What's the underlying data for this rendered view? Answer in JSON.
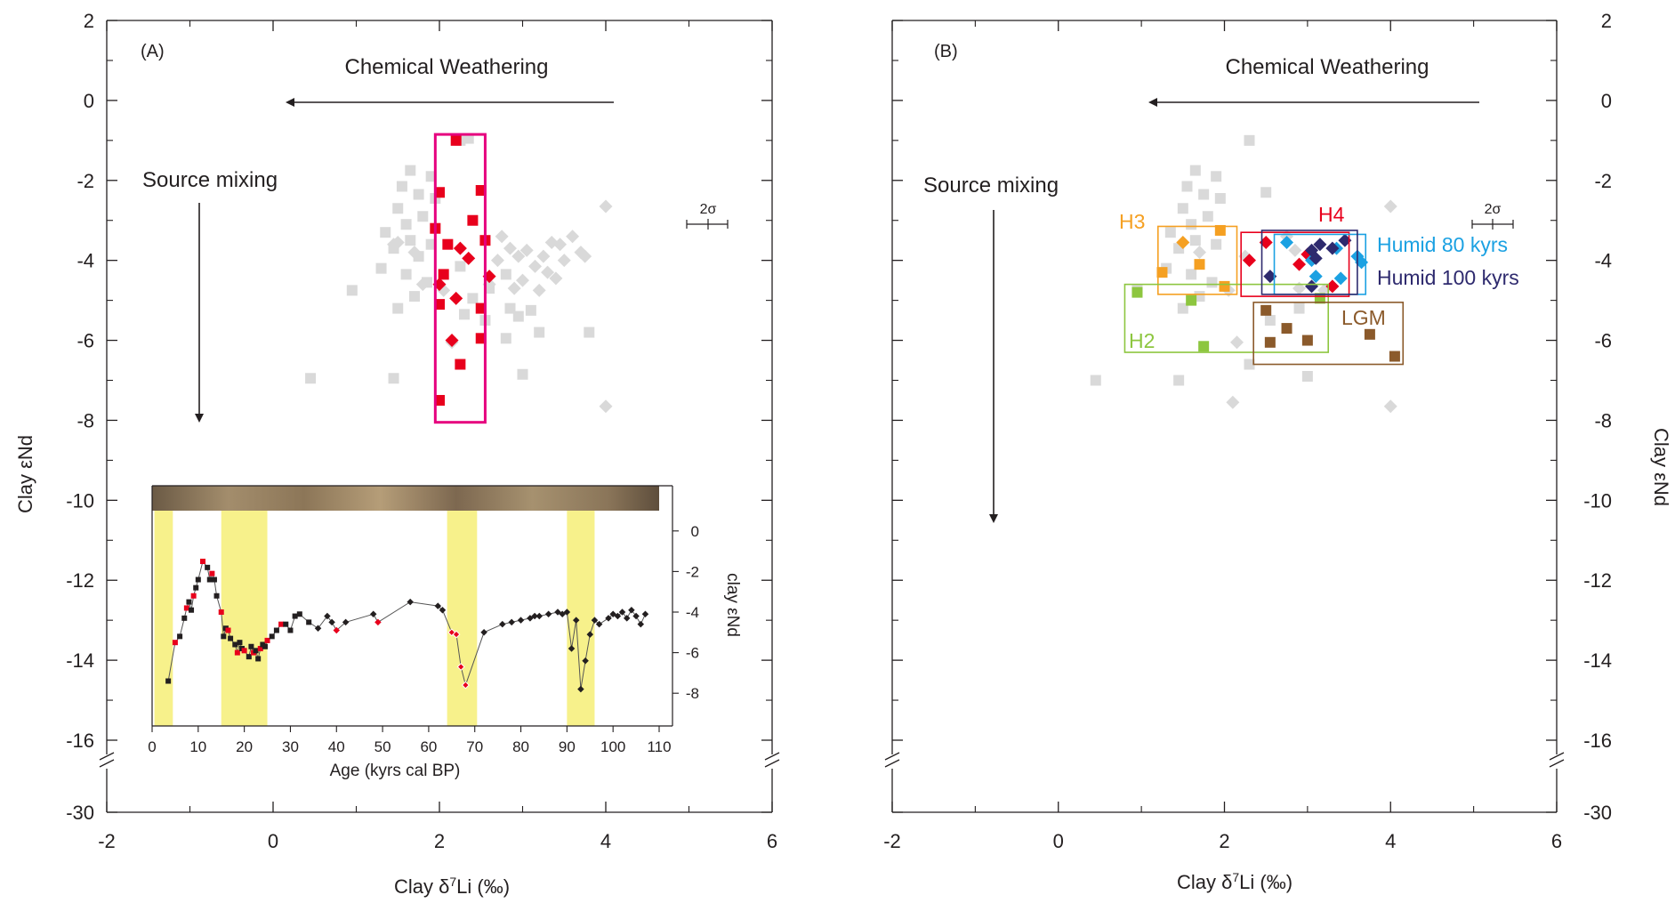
{
  "chart_data": [
    {
      "panel": "A",
      "type": "scatter",
      "panel_label": "(A)",
      "xlabel": "Clay δ7Li (‰)",
      "ylabel": "Clay εNd",
      "xlim": [
        -2,
        6
      ],
      "ylim": [
        -30,
        2
      ],
      "axis_break": [
        -16,
        -30
      ],
      "x_ticks": [
        "-2",
        "0",
        "2",
        "4",
        "6"
      ],
      "y_ticks": [
        "2",
        "0",
        "-2",
        "-4",
        "-6",
        "-8",
        "-10",
        "-12",
        "-14",
        "-16",
        "-30"
      ],
      "arrow_labels": {
        "horizontal": "Chemical Weathering",
        "vertical": "Source mixing"
      },
      "error_bar_label": "2σ",
      "series": [
        {
          "marker": "square",
          "color": "#d9d9d9",
          "points": [
            [
              1.65,
              -1.75
            ],
            [
              1.9,
              -1.9
            ],
            [
              1.55,
              -2.15
            ],
            [
              1.75,
              -2.35
            ],
            [
              1.95,
              -2.45
            ],
            [
              1.5,
              -2.7
            ],
            [
              1.8,
              -2.9
            ],
            [
              1.6,
              -3.1
            ],
            [
              1.35,
              -3.3
            ],
            [
              1.65,
              -3.5
            ],
            [
              1.9,
              -3.6
            ],
            [
              1.45,
              -3.7
            ],
            [
              1.75,
              -3.9
            ],
            [
              1.3,
              -4.2
            ],
            [
              1.6,
              -4.35
            ],
            [
              1.85,
              -4.55
            ],
            [
              0.95,
              -4.75
            ],
            [
              1.7,
              -4.9
            ],
            [
              1.5,
              -5.2
            ],
            [
              2.25,
              -4.15
            ],
            [
              2.8,
              -4.35
            ],
            [
              2.6,
              -4.7
            ],
            [
              2.4,
              -4.95
            ],
            [
              2.85,
              -5.2
            ],
            [
              2.3,
              -5.35
            ],
            [
              2.95,
              -5.4
            ],
            [
              3.1,
              -5.25
            ],
            [
              2.55,
              -5.5
            ],
            [
              3.2,
              -5.8
            ],
            [
              3.8,
              -5.8
            ],
            [
              2.8,
              -5.95
            ],
            [
              0.45,
              -6.95
            ],
            [
              1.45,
              -6.95
            ],
            [
              3.0,
              -6.85
            ],
            [
              2.25,
              -1.0
            ],
            [
              2.35,
              -0.95
            ]
          ]
        },
        {
          "marker": "diamond",
          "color": "#d9d9d9",
          "points": [
            [
              1.5,
              -3.55
            ],
            [
              1.7,
              -3.8
            ],
            [
              1.45,
              -3.6
            ],
            [
              2.75,
              -3.4
            ],
            [
              2.85,
              -3.7
            ],
            [
              2.7,
              -4.0
            ],
            [
              2.95,
              -3.9
            ],
            [
              3.05,
              -3.75
            ],
            [
              3.25,
              -3.9
            ],
            [
              3.35,
              -3.55
            ],
            [
              3.45,
              -3.6
            ],
            [
              3.6,
              -3.4
            ],
            [
              3.7,
              -3.8
            ],
            [
              3.5,
              -4.0
            ],
            [
              3.75,
              -3.9
            ],
            [
              3.15,
              -4.15
            ],
            [
              3.3,
              -4.3
            ],
            [
              3.0,
              -4.5
            ],
            [
              2.9,
              -4.7
            ],
            [
              3.2,
              -4.75
            ],
            [
              3.4,
              -4.45
            ],
            [
              2.6,
              -4.6
            ],
            [
              1.8,
              -4.6
            ],
            [
              2.05,
              -4.75
            ],
            [
              4.0,
              -2.65
            ],
            [
              4.0,
              -7.65
            ],
            [
              2.15,
              -6.05
            ]
          ]
        },
        {
          "marker": "square",
          "color": "#e8001c",
          "points": [
            [
              2.2,
              -1.0
            ],
            [
              2.0,
              -2.3
            ],
            [
              2.5,
              -2.25
            ],
            [
              2.4,
              -3.0
            ],
            [
              1.95,
              -3.2
            ],
            [
              2.1,
              -3.6
            ],
            [
              2.55,
              -3.5
            ],
            [
              2.05,
              -4.35
            ],
            [
              2.5,
              -5.2
            ],
            [
              2.0,
              -5.1
            ],
            [
              2.5,
              -5.95
            ],
            [
              2.25,
              -6.6
            ],
            [
              2.0,
              -7.5
            ]
          ]
        },
        {
          "marker": "diamond",
          "color": "#e8001c",
          "points": [
            [
              2.25,
              -3.7
            ],
            [
              2.35,
              -3.95
            ],
            [
              2.0,
              -4.6
            ],
            [
              2.6,
              -4.4
            ],
            [
              2.2,
              -4.95
            ],
            [
              2.15,
              -6.0
            ]
          ]
        }
      ],
      "highlight_box": {
        "x": [
          1.95,
          2.55
        ],
        "y": [
          -8.05,
          -0.85
        ],
        "color": "#e6007e"
      },
      "inset": {
        "type": "line",
        "xlabel": "Age (kyrs cal BP)",
        "ylabel": "clay εNd",
        "xlim": [
          0,
          110
        ],
        "ylim": [
          -9,
          1
        ],
        "x_ticks": [
          "0",
          "10",
          "20",
          "30",
          "40",
          "50",
          "60",
          "70",
          "80",
          "90",
          "100",
          "110"
        ],
        "y_ticks": [
          "0",
          "-2",
          "-4",
          "-6",
          "-8"
        ],
        "shaded_ranges": [
          [
            0.5,
            4.5
          ],
          [
            15,
            25
          ],
          [
            64,
            70.5
          ],
          [
            90,
            96
          ]
        ],
        "shade_color": "#f7f18b",
        "series": [
          {
            "x": [
              3.5,
              5,
              6,
              7,
              7.5,
              8,
              8.5,
              9,
              9.5,
              10,
              11,
              12,
              12.5,
              13,
              13.5,
              14,
              15,
              15.5,
              16,
              16.5,
              17,
              18,
              18.5,
              19,
              19.5,
              20,
              21,
              21.5,
              22,
              22.5,
              23,
              23.5,
              24,
              24.5,
              25,
              26,
              27,
              28,
              29,
              30,
              31,
              32,
              34,
              36,
              38,
              39,
              40,
              42,
              48,
              49,
              56,
              62,
              63,
              65,
              66,
              67,
              68,
              72,
              76,
              78,
              80,
              82,
              83,
              84,
              86,
              88,
              89,
              90,
              91,
              92,
              93,
              94,
              95,
              96,
              97,
              99,
              100,
              101,
              102,
              103,
              104,
              105,
              106,
              107
            ],
            "y": [
              -7.4,
              -5.5,
              -5.2,
              -4.3,
              -3.8,
              -3.5,
              -3.9,
              -3.2,
              -2.8,
              -2.4,
              -1.5,
              -1.8,
              -2.4,
              -2.1,
              -2.4,
              -3.2,
              -4.0,
              -5.2,
              -4.8,
              -4.9,
              -5.3,
              -5.6,
              -6.0,
              -5.5,
              -5.8,
              -5.9,
              -6.2,
              -5.7,
              -6.0,
              -5.9,
              -6.3,
              -5.8,
              -5.6,
              -5.7,
              -5.4,
              -5.2,
              -4.9,
              -4.6,
              -4.6,
              -4.9,
              -4.2,
              -4.1,
              -4.5,
              -4.8,
              -4.2,
              -4.5,
              -4.9,
              -4.5,
              -4.1,
              -4.5,
              -3.5,
              -3.7,
              -3.9,
              -5.0,
              -5.1,
              -6.7,
              -7.6,
              -5.0,
              -4.6,
              -4.5,
              -4.4,
              -4.3,
              -4.2,
              -4.2,
              -4.1,
              -4.0,
              -4.1,
              -4.0,
              -5.8,
              -4.4,
              -7.8,
              -6.4,
              -5.1,
              -4.4,
              -4.6,
              -4.3,
              -4.1,
              -4.2,
              -4.0,
              -4.3,
              -3.9,
              -4.2,
              -4.6,
              -4.1
            ]
          }
        ]
      }
    },
    {
      "panel": "B",
      "type": "scatter",
      "panel_label": "(B)",
      "xlabel": "Clay δ7Li (‰)",
      "ylabel": "Clay εNd",
      "xlim": [
        -2,
        6
      ],
      "ylim": [
        -30,
        2
      ],
      "axis_break": [
        -16,
        -30
      ],
      "x_ticks": [
        "-2",
        "0",
        "2",
        "4",
        "6"
      ],
      "y_ticks": [
        "2",
        "0",
        "-2",
        "-4",
        "-6",
        "-8",
        "-10",
        "-12",
        "-14",
        "-16",
        "-30"
      ],
      "arrow_labels": {
        "horizontal": "Chemical Weathering",
        "vertical": "Source mixing"
      },
      "error_bar_label": "2σ",
      "series": [
        {
          "marker": "square",
          "color": "#d9d9d9",
          "points": [
            [
              1.65,
              -1.75
            ],
            [
              1.9,
              -1.9
            ],
            [
              1.55,
              -2.15
            ],
            [
              1.75,
              -2.35
            ],
            [
              1.95,
              -2.45
            ],
            [
              1.5,
              -2.7
            ],
            [
              1.8,
              -2.9
            ],
            [
              1.6,
              -3.1
            ],
            [
              1.35,
              -3.3
            ],
            [
              1.65,
              -3.5
            ],
            [
              1.9,
              -3.6
            ],
            [
              1.45,
              -3.7
            ],
            [
              1.3,
              -4.2
            ],
            [
              1.6,
              -4.35
            ],
            [
              1.85,
              -4.55
            ],
            [
              0.95,
              -4.75
            ],
            [
              1.7,
              -4.9
            ],
            [
              1.5,
              -5.2
            ],
            [
              2.3,
              -1.0
            ],
            [
              2.5,
              -2.3
            ],
            [
              2.9,
              -5.2
            ],
            [
              2.55,
              -5.5
            ],
            [
              3.0,
              -6.9
            ],
            [
              2.3,
              -6.6
            ],
            [
              1.45,
              -7.0
            ],
            [
              0.45,
              -7.0
            ]
          ]
        },
        {
          "marker": "diamond",
          "color": "#d9d9d9",
          "points": [
            [
              1.5,
              -3.55
            ],
            [
              1.7,
              -3.8
            ],
            [
              2.25,
              -3.9
            ],
            [
              2.75,
              -3.4
            ],
            [
              2.85,
              -3.75
            ],
            [
              2.9,
              -4.7
            ],
            [
              3.2,
              -4.75
            ],
            [
              2.05,
              -4.75
            ],
            [
              4.0,
              -2.65
            ],
            [
              4.0,
              -7.65
            ],
            [
              2.15,
              -6.05
            ],
            [
              2.1,
              -7.55
            ]
          ]
        },
        {
          "marker": "square",
          "color": "#f5a022",
          "points": [
            [
              1.95,
              -3.25
            ],
            [
              1.7,
              -4.1
            ],
            [
              1.25,
              -4.3
            ],
            [
              2.0,
              -4.65
            ]
          ]
        },
        {
          "marker": "diamond",
          "color": "#f5a022",
          "points": [
            [
              1.5,
              -3.55
            ]
          ]
        },
        {
          "marker": "square",
          "color": "#8dc63f",
          "points": [
            [
              0.95,
              -4.8
            ],
            [
              1.6,
              -5.0
            ],
            [
              3.15,
              -4.95
            ],
            [
              1.75,
              -6.15
            ]
          ]
        },
        {
          "marker": "diamond",
          "color": "#e8001c",
          "points": [
            [
              2.5,
              -3.55
            ],
            [
              2.3,
              -4.0
            ],
            [
              2.9,
              -4.1
            ],
            [
              3.0,
              -3.85
            ],
            [
              3.3,
              -4.65
            ]
          ]
        },
        {
          "marker": "diamond",
          "color": "#1ba1e2",
          "points": [
            [
              2.75,
              -3.55
            ],
            [
              3.05,
              -4.0
            ],
            [
              3.35,
              -3.7
            ],
            [
              3.1,
              -4.4
            ],
            [
              3.4,
              -4.45
            ],
            [
              3.6,
              -3.9
            ],
            [
              3.65,
              -4.05
            ]
          ]
        },
        {
          "marker": "diamond",
          "color": "#2e2a6e",
          "points": [
            [
              3.45,
              -3.5
            ],
            [
              3.15,
              -3.6
            ],
            [
              3.05,
              -3.75
            ],
            [
              3.3,
              -3.7
            ],
            [
              3.1,
              -3.95
            ],
            [
              2.55,
              -4.4
            ],
            [
              3.05,
              -4.65
            ]
          ]
        },
        {
          "marker": "square",
          "color": "#8b5a2b",
          "points": [
            [
              2.5,
              -5.25
            ],
            [
              2.75,
              -5.7
            ],
            [
              2.55,
              -6.05
            ],
            [
              3.0,
              -6.0
            ],
            [
              3.75,
              -5.85
            ],
            [
              4.05,
              -6.4
            ]
          ]
        }
      ],
      "group_boxes": [
        {
          "label": "H3",
          "color": "#f5a022",
          "x": [
            1.2,
            2.15
          ],
          "y": [
            -4.85,
            -3.15
          ]
        },
        {
          "label": "H2",
          "color": "#8dc63f",
          "x": [
            0.8,
            3.25
          ],
          "y": [
            -6.3,
            -4.6
          ]
        },
        {
          "label": "H4",
          "color": "#e8001c",
          "x": [
            2.2,
            3.5
          ],
          "y": [
            -4.9,
            -3.3
          ]
        },
        {
          "label": "Humid 80 kyrs",
          "color": "#1ba1e2",
          "x": [
            2.6,
            3.7
          ],
          "y": [
            -4.85,
            -3.35
          ]
        },
        {
          "label": "Humid 100 kyrs",
          "color": "#2e2a6e",
          "x": [
            2.45,
            3.6
          ],
          "y": [
            -4.85,
            -3.25
          ]
        },
        {
          "label": "LGM",
          "color": "#8b5a2b",
          "x": [
            2.35,
            4.15
          ],
          "y": [
            -6.6,
            -5.05
          ]
        }
      ]
    }
  ]
}
